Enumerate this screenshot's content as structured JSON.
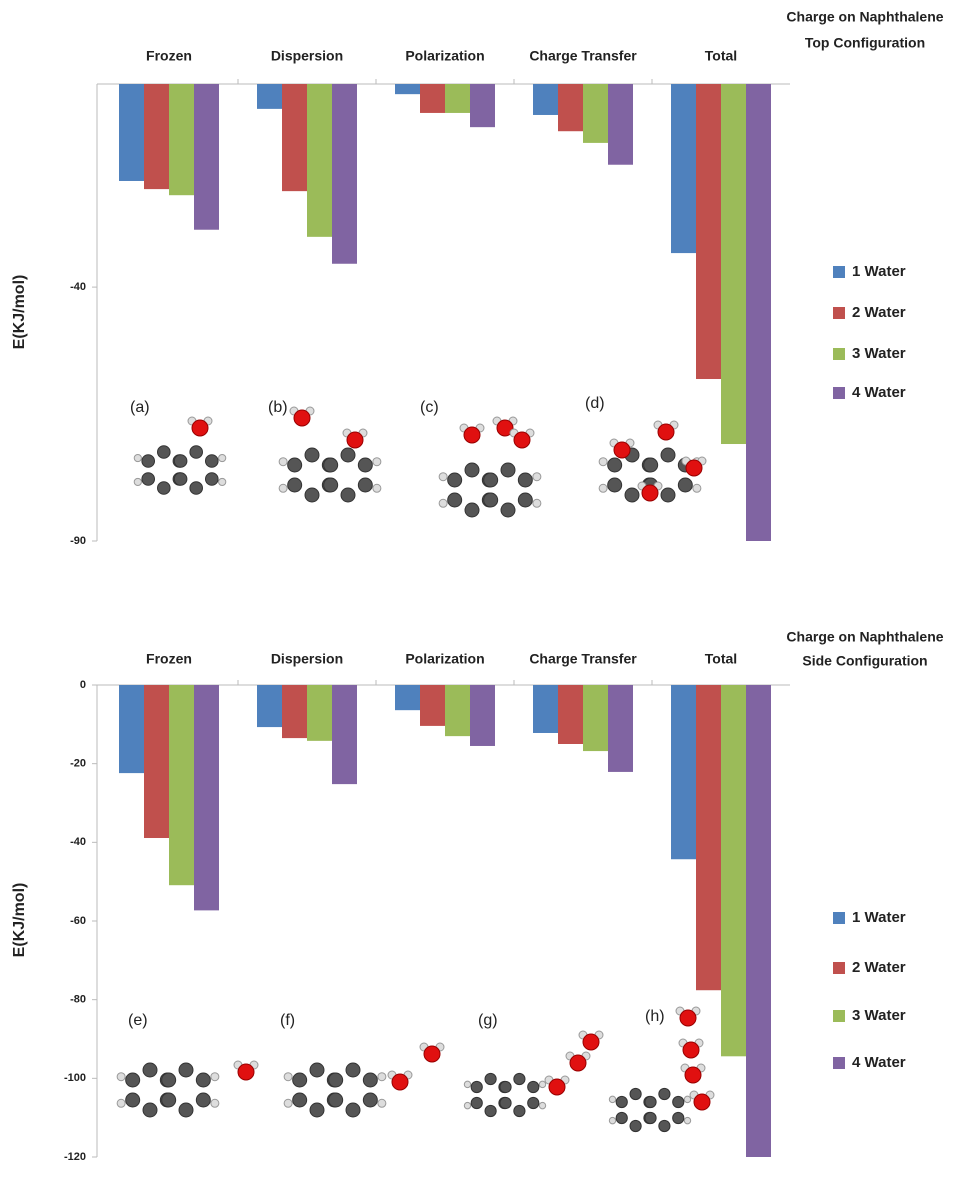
{
  "chart_data": [
    {
      "type": "bar",
      "title": "Charge on Naphthalene",
      "subtitle": "Top Configuration",
      "y_label": "E(KJ/mol)",
      "categories": [
        "Frozen",
        "Dispersion",
        "Polarization",
        "Charge Transfer",
        "Total"
      ],
      "series": [
        {
          "name": "1 Water",
          "color": "#4f81bd",
          "values": [
            -19.1,
            -4.9,
            -2.0,
            -6.1,
            -33.3
          ]
        },
        {
          "name": "2 Water",
          "color": "#c0504d",
          "values": [
            -20.7,
            -21.1,
            -5.7,
            -9.3,
            -58.1
          ]
        },
        {
          "name": "3 Water",
          "color": "#9bbb59",
          "values": [
            -21.9,
            -30.1,
            -5.7,
            -11.6,
            -70.9
          ]
        },
        {
          "name": "4 Water",
          "color": "#8064a2",
          "values": [
            -28.7,
            -35.4,
            -8.5,
            -15.9,
            -90
          ]
        }
      ],
      "ylim": [
        -90,
        0
      ],
      "yticks": [
        -40,
        -90
      ],
      "annotations": [
        "(a)",
        "(b)",
        "(c)",
        "(d)"
      ]
    },
    {
      "type": "bar",
      "title": "Charge on Naphthalene",
      "subtitle": "Side Configuration",
      "y_label": "E(KJ/mol)",
      "categories": [
        "Frozen",
        "Dispersion",
        "Polarization",
        "Charge Transfer",
        "Total"
      ],
      "series": [
        {
          "name": "1 Water",
          "color": "#4f81bd",
          "values": [
            -22.4,
            -10.7,
            -6.4,
            -12.2,
            -44.3
          ]
        },
        {
          "name": "2 Water",
          "color": "#c0504d",
          "values": [
            -38.9,
            -13.5,
            -10.4,
            -15,
            -77.6
          ]
        },
        {
          "name": "3 Water",
          "color": "#9bbb59",
          "values": [
            -50.9,
            -14.2,
            -13,
            -16.8,
            -94.4
          ]
        },
        {
          "name": "4 Water",
          "color": "#8064a2",
          "values": [
            -57.3,
            -25.2,
            -15.5,
            -22.1,
            -120
          ]
        }
      ],
      "ylim": [
        -120,
        0
      ],
      "yticks": [
        0,
        -20,
        -40,
        -60,
        -80,
        -100,
        -120
      ],
      "annotations": [
        "(e)",
        "(f)",
        "(g)",
        "(h)"
      ]
    }
  ]
}
